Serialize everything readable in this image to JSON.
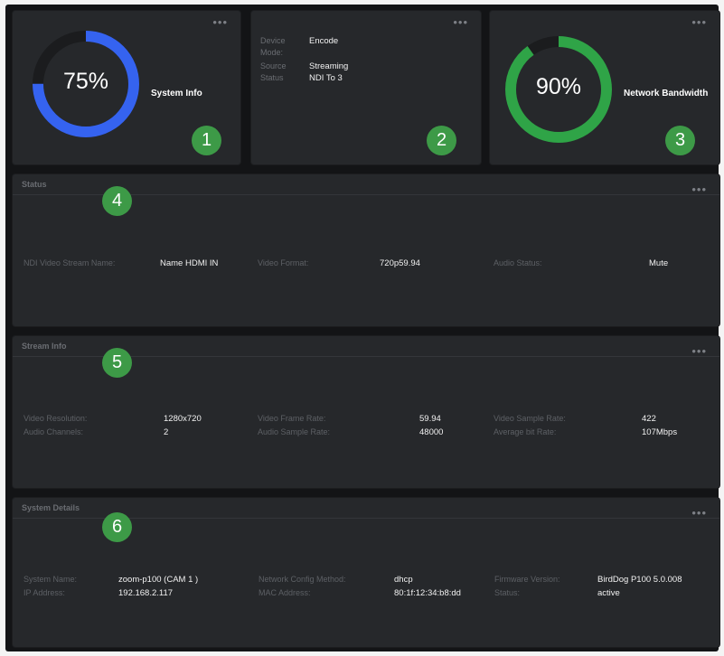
{
  "cards": {
    "system_info": {
      "title": "System Info",
      "percent_label": "75%",
      "percent": 75,
      "badge": "1",
      "color": "#3563f0"
    },
    "device": {
      "rows": [
        {
          "label": "Device",
          "value": "Encode"
        },
        {
          "label": "Mode:",
          "value": ""
        },
        {
          "label": "Source",
          "value": "Streaming"
        },
        {
          "label": "Status",
          "value": "NDI To 3"
        }
      ],
      "badge": "2"
    },
    "network": {
      "title": "Network Bandwidth",
      "percent_label": "90%",
      "percent": 90,
      "badge": "3",
      "color": "#2fa447"
    }
  },
  "status": {
    "title": "Status",
    "badge": "4",
    "items": [
      {
        "label": "NDI Video Stream Name:",
        "value": "Name HDMI IN"
      },
      {
        "label": "Video Format:",
        "value": "720p59.94"
      },
      {
        "label": "Audio Status:",
        "value": "Mute"
      }
    ]
  },
  "stream_info": {
    "title": "Stream Info",
    "badge": "5",
    "items": [
      {
        "label": "Video Resolution:",
        "value": "1280x720"
      },
      {
        "label": "Video Frame Rate:",
        "value": "59.94"
      },
      {
        "label": "Video Sample Rate:",
        "value": "422"
      },
      {
        "label": "Audio Channels:",
        "value": "2"
      },
      {
        "label": "Audio Sample Rate:",
        "value": "48000"
      },
      {
        "label": "Average bit Rate:",
        "value": "107Mbps"
      }
    ]
  },
  "system_details": {
    "title": "System Details",
    "badge": "6",
    "items": [
      {
        "label": "System Name:",
        "value": "zoom-p100 (CAM 1 )"
      },
      {
        "label": "Network Config Method:",
        "value": "dhcp"
      },
      {
        "label": "Firmware Version:",
        "value": "BirdDog P100 5.0.008"
      },
      {
        "label": "IP Address:",
        "value": "192.168.2.117"
      },
      {
        "label": "MAC Address:",
        "value": "80:1f:12:34:b8:dd"
      },
      {
        "label": "Status:",
        "value": "active"
      }
    ]
  },
  "more_label": "•••"
}
